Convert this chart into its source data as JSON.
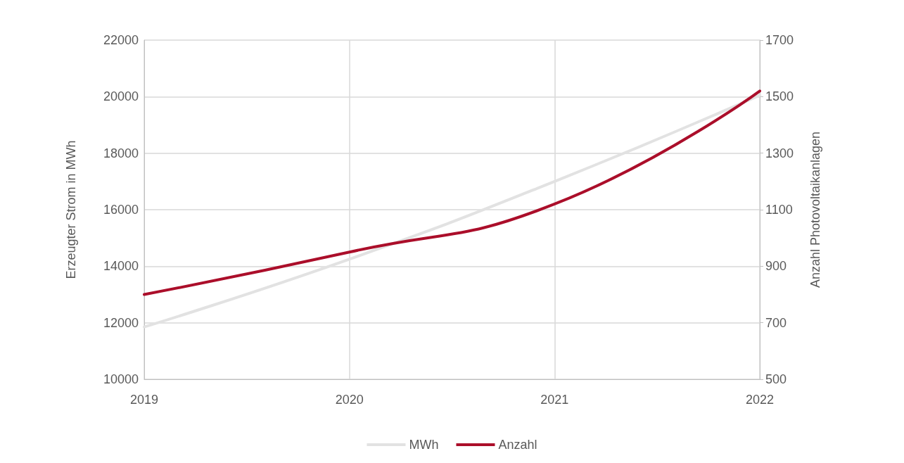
{
  "chart_data": {
    "type": "line",
    "ylabel": "Erzeugter Strom in MWh",
    "y2label": "Anzahl Photovoltaikanlagen",
    "categories": [
      "2019",
      "2020",
      "2021",
      "2022"
    ],
    "series": [
      {
        "name": "MWh",
        "color": "#e2e2e2",
        "values": [
          11850,
          14250,
          17000,
          20050
        ]
      },
      {
        "name": "Anzahl",
        "color": "#ab0e2a",
        "axis": "y2",
        "values": [
          800,
          950,
          1120,
          1520
        ]
      }
    ],
    "ylim": [
      10000,
      22000
    ],
    "yticks": [
      10000,
      12000,
      14000,
      16000,
      18000,
      20000,
      22000
    ],
    "y2lim": [
      500,
      1700
    ],
    "y2ticks": [
      500,
      700,
      900,
      1100,
      1300,
      1500,
      1700
    ],
    "grid": true,
    "legend": "bottom",
    "marker": "none",
    "line_style": "solid"
  }
}
